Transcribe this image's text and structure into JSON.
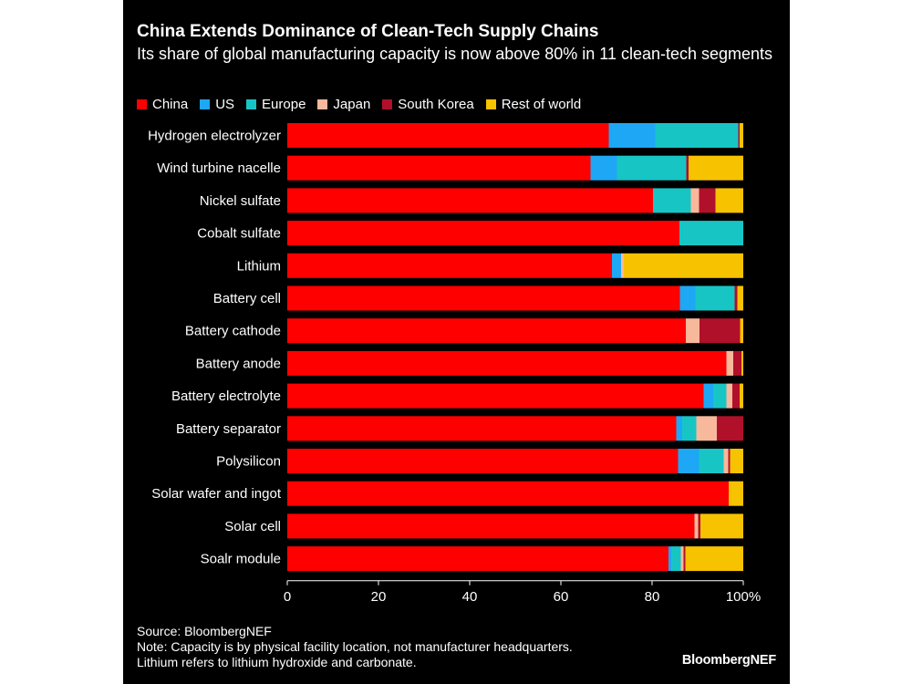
{
  "title": "China Extends Dominance of Clean-Tech Supply Chains",
  "subtitle": "Its share of global manufacturing capacity is now above 80% in 11 clean-tech segments",
  "legend": [
    {
      "label": "China",
      "color": "#ff0000"
    },
    {
      "label": "US",
      "color": "#1ea7f5"
    },
    {
      "label": "Europe",
      "color": "#18c5c5"
    },
    {
      "label": "Japan",
      "color": "#f7b89b"
    },
    {
      "label": "South Korea",
      "color": "#b0102a"
    },
    {
      "label": "Rest of world",
      "color": "#f7c200"
    }
  ],
  "source": "Source: BloombergNEF",
  "note_1": "Note: Capacity is by physical facility location, not manufacturer headquarters.",
  "note_2": "Lithium refers to lithium hydroxide and carbonate.",
  "brand": "BloombergNEF",
  "chart_data": {
    "type": "bar",
    "orientation": "horizontal",
    "stacked": true,
    "categories": [
      "Hydrogen electrolyzer",
      "Wind turbine nacelle",
      "Nickel sulfate",
      "Cobalt sulfate",
      "Lithium",
      "Battery cell",
      "Battery cathode",
      "Battery anode",
      "Battery electrolyte",
      "Battery separator",
      "Polysilicon",
      "Solar wafer and ingot",
      "Solar cell",
      "Soalr module"
    ],
    "series": [
      {
        "name": "China",
        "color": "#ff0000",
        "values": [
          70.5,
          66.5,
          80.2,
          86,
          71.2,
          86.1,
          87.4,
          96.3,
          91.3,
          85.3,
          85.7,
          96.8,
          89.3,
          83.6
        ]
      },
      {
        "name": "US",
        "color": "#1ea7f5",
        "values": [
          10.2,
          5.8,
          0,
          0,
          2,
          3.4,
          0,
          0,
          2.1,
          1.3,
          4.6,
          0,
          0,
          0.6
        ]
      },
      {
        "name": "Europe",
        "color": "#18c5c5",
        "values": [
          18.2,
          15.2,
          8.3,
          14,
          0,
          8.6,
          0,
          0,
          2.9,
          3.1,
          5.4,
          0,
          0,
          2.1
        ]
      },
      {
        "name": "Japan",
        "color": "#f7b89b",
        "values": [
          0,
          0,
          1.8,
          0,
          0.6,
          0,
          3,
          1.5,
          1.3,
          4.5,
          1,
          0,
          0.8,
          0.6
        ]
      },
      {
        "name": "South Korea",
        "color": "#b0102a",
        "values": [
          0.3,
          0.5,
          3.6,
          0,
          0,
          0.6,
          8.9,
          1.8,
          1.6,
          5.8,
          0.4,
          0,
          0.5,
          0.4
        ]
      },
      {
        "name": "Rest of world",
        "color": "#f7c200",
        "values": [
          0.8,
          12,
          6.1,
          0,
          26.2,
          1.3,
          0.7,
          0.4,
          0.8,
          0,
          2.9,
          3.2,
          9.4,
          12.7
        ]
      }
    ],
    "x_ticks": [
      "0",
      "20",
      "40",
      "60",
      "80",
      "100%"
    ],
    "xlim": [
      0,
      100
    ],
    "grid": false,
    "legend_position": "top-left"
  }
}
